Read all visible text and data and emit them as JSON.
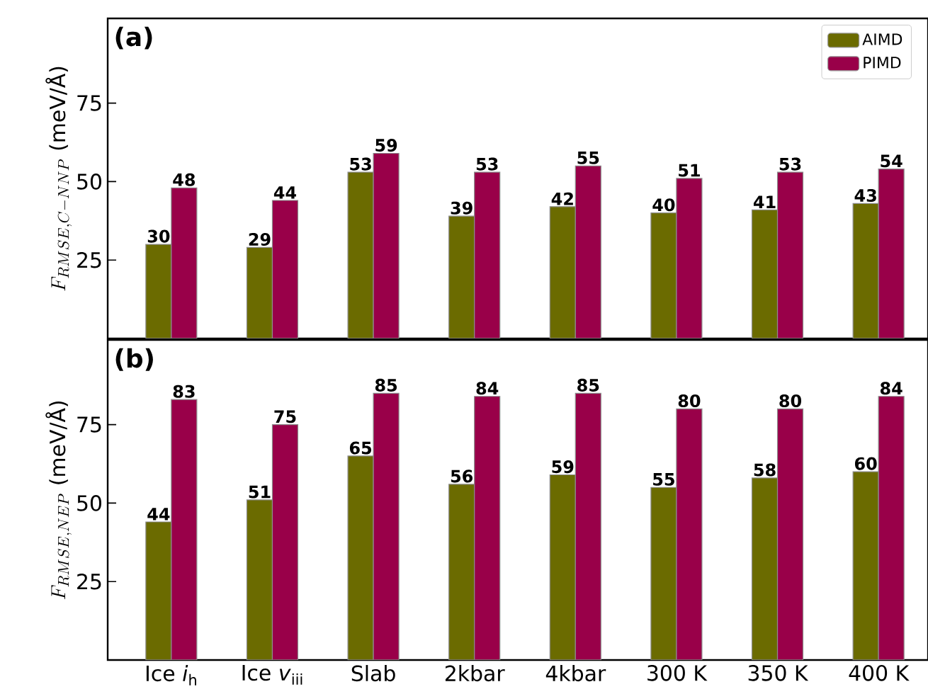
{
  "chart_data": [
    {
      "type": "bar",
      "title": "(a)",
      "ylabel": "F_{RMSE,C-NNP}\\ \\mbox{(meV/Å)}",
      "categories": [
        null,
        null,
        null,
        null,
        null,
        null,
        null,
        null
      ],
      "series": [
        {
          "name": "AIMD",
          "color": "#6b6b00",
          "values": [
            30,
            29,
            53,
            39,
            42,
            40,
            41,
            43
          ]
        },
        {
          "name": "PIMD",
          "color": "#990049",
          "values": [
            48,
            44,
            59,
            53,
            55,
            51,
            53,
            54
          ]
        }
      ],
      "ylim": [
        0,
        102
      ],
      "yticks": [
        25,
        50,
        75
      ],
      "data_labels": true,
      "legend": "top right",
      "tick_labels": "y"
    },
    {
      "type": "bar",
      "title": "(b)",
      "ylabel": "F_{RMSE,NEP}\\ \\mbox{(meV/Å)}",
      "categories": [
        "Ice *i*$_{h}$",
        "Ice *v*$_{iii}$",
        "Slab",
        "2kbar",
        "4kbar",
        "300 K",
        "350 K",
        "400 K"
      ],
      "series": [
        {
          "color": "#6b6b00",
          "values": [
            44,
            51,
            65,
            56,
            59,
            55,
            58,
            60
          ]
        },
        {
          "color": "#990049",
          "values": [
            83,
            75,
            85,
            84,
            85,
            80,
            80,
            84
          ]
        }
      ],
      "ylim": [
        0,
        102
      ],
      "yticks": [
        25,
        50,
        75
      ],
      "data_labels": true
    }
  ]
}
